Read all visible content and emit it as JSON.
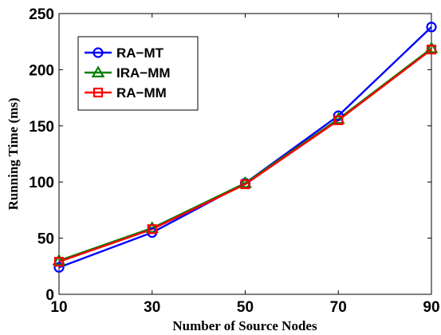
{
  "chart_data": {
    "type": "line",
    "xlabel": "Number of Source Nodes",
    "ylabel": "Running Time (ms)",
    "x": [
      10,
      30,
      50,
      70,
      90
    ],
    "x_ticks": [
      "10",
      "30",
      "50",
      "70",
      "90"
    ],
    "y_ticks": [
      "0",
      "50",
      "100",
      "150",
      "200",
      "250"
    ],
    "xlim": [
      10,
      90
    ],
    "ylim": [
      0,
      250
    ],
    "grid": false,
    "legend_position": "top-left",
    "series": [
      {
        "name": "RA−MT",
        "values": [
          24,
          55,
          99,
          159,
          238
        ],
        "color": "#0000ff",
        "marker": "circle"
      },
      {
        "name": "IRA−MM",
        "values": [
          30,
          59,
          99,
          156,
          219
        ],
        "color": "#008000",
        "marker": "triangle"
      },
      {
        "name": "RA−MM",
        "values": [
          29,
          58,
          98,
          155,
          218
        ],
        "color": "#ff0000",
        "marker": "square"
      }
    ]
  }
}
